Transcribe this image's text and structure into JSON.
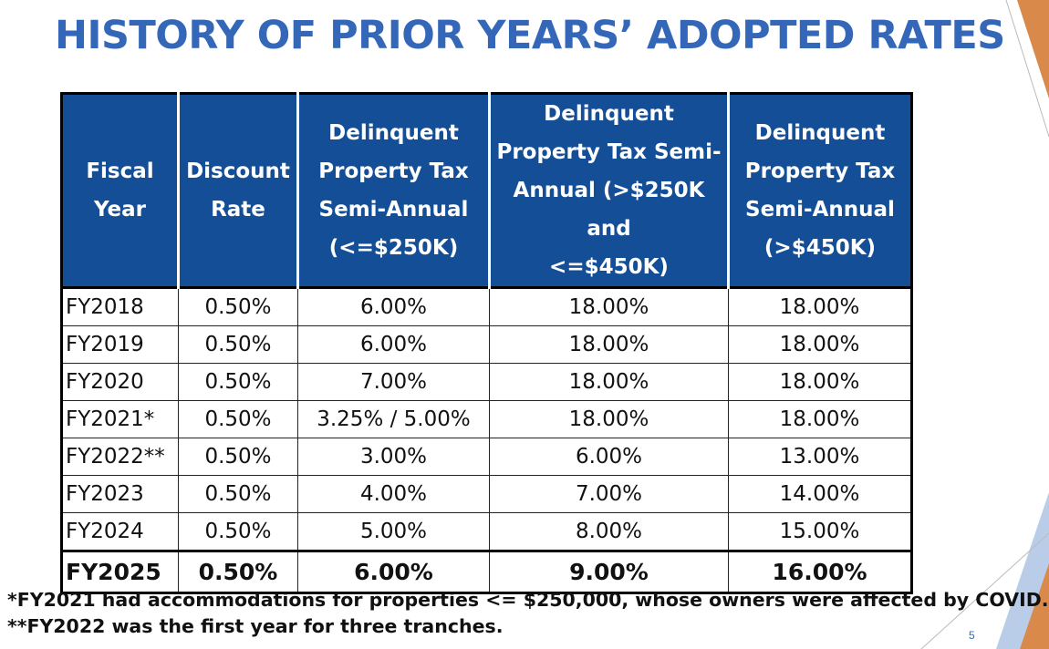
{
  "slide": {
    "title": "HISTORY OF PRIOR YEARS’ ADOPTED RATES",
    "page_number": "5",
    "accent_color": "#3567b8",
    "header_color": "#134e96",
    "decor_colors": [
      "#d98a4a",
      "#b9cde8"
    ]
  },
  "table": {
    "headers": [
      [
        "Fiscal",
        "Year"
      ],
      [
        "Discount",
        "Rate"
      ],
      [
        "Delinquent",
        "Property Tax",
        "Semi-Annual",
        "(<=$250K)"
      ],
      [
        "Delinquent",
        "Property Tax Semi-",
        "Annual (>$250K and",
        "<=$450K)"
      ],
      [
        "Delinquent",
        "Property Tax",
        "Semi-Annual",
        "(>$450K)"
      ]
    ],
    "rows": [
      {
        "cells": [
          "FY2018",
          "0.50%",
          "6.00%",
          "18.00%",
          "18.00%"
        ],
        "bold": false
      },
      {
        "cells": [
          "FY2019",
          "0.50%",
          "6.00%",
          "18.00%",
          "18.00%"
        ],
        "bold": false
      },
      {
        "cells": [
          "FY2020",
          "0.50%",
          "7.00%",
          "18.00%",
          "18.00%"
        ],
        "bold": false
      },
      {
        "cells": [
          "FY2021*",
          "0.50%",
          "3.25% / 5.00%",
          "18.00%",
          "18.00%"
        ],
        "bold": false
      },
      {
        "cells": [
          "FY2022**",
          "0.50%",
          "3.00%",
          "6.00%",
          "13.00%"
        ],
        "bold": false
      },
      {
        "cells": [
          "FY2023",
          "0.50%",
          "4.00%",
          "7.00%",
          "14.00%"
        ],
        "bold": false
      },
      {
        "cells": [
          "FY2024",
          "0.50%",
          "5.00%",
          "8.00%",
          "15.00%"
        ],
        "bold": false
      },
      {
        "cells": [
          "FY2025",
          "0.50%",
          "6.00%",
          "9.00%",
          "16.00%"
        ],
        "bold": true
      }
    ]
  },
  "footnotes": [
    "*FY2021 had accommodations for properties <= $250,000, whose owners were affected by COVID.",
    "**FY2022 was the first year for three tranches."
  ]
}
